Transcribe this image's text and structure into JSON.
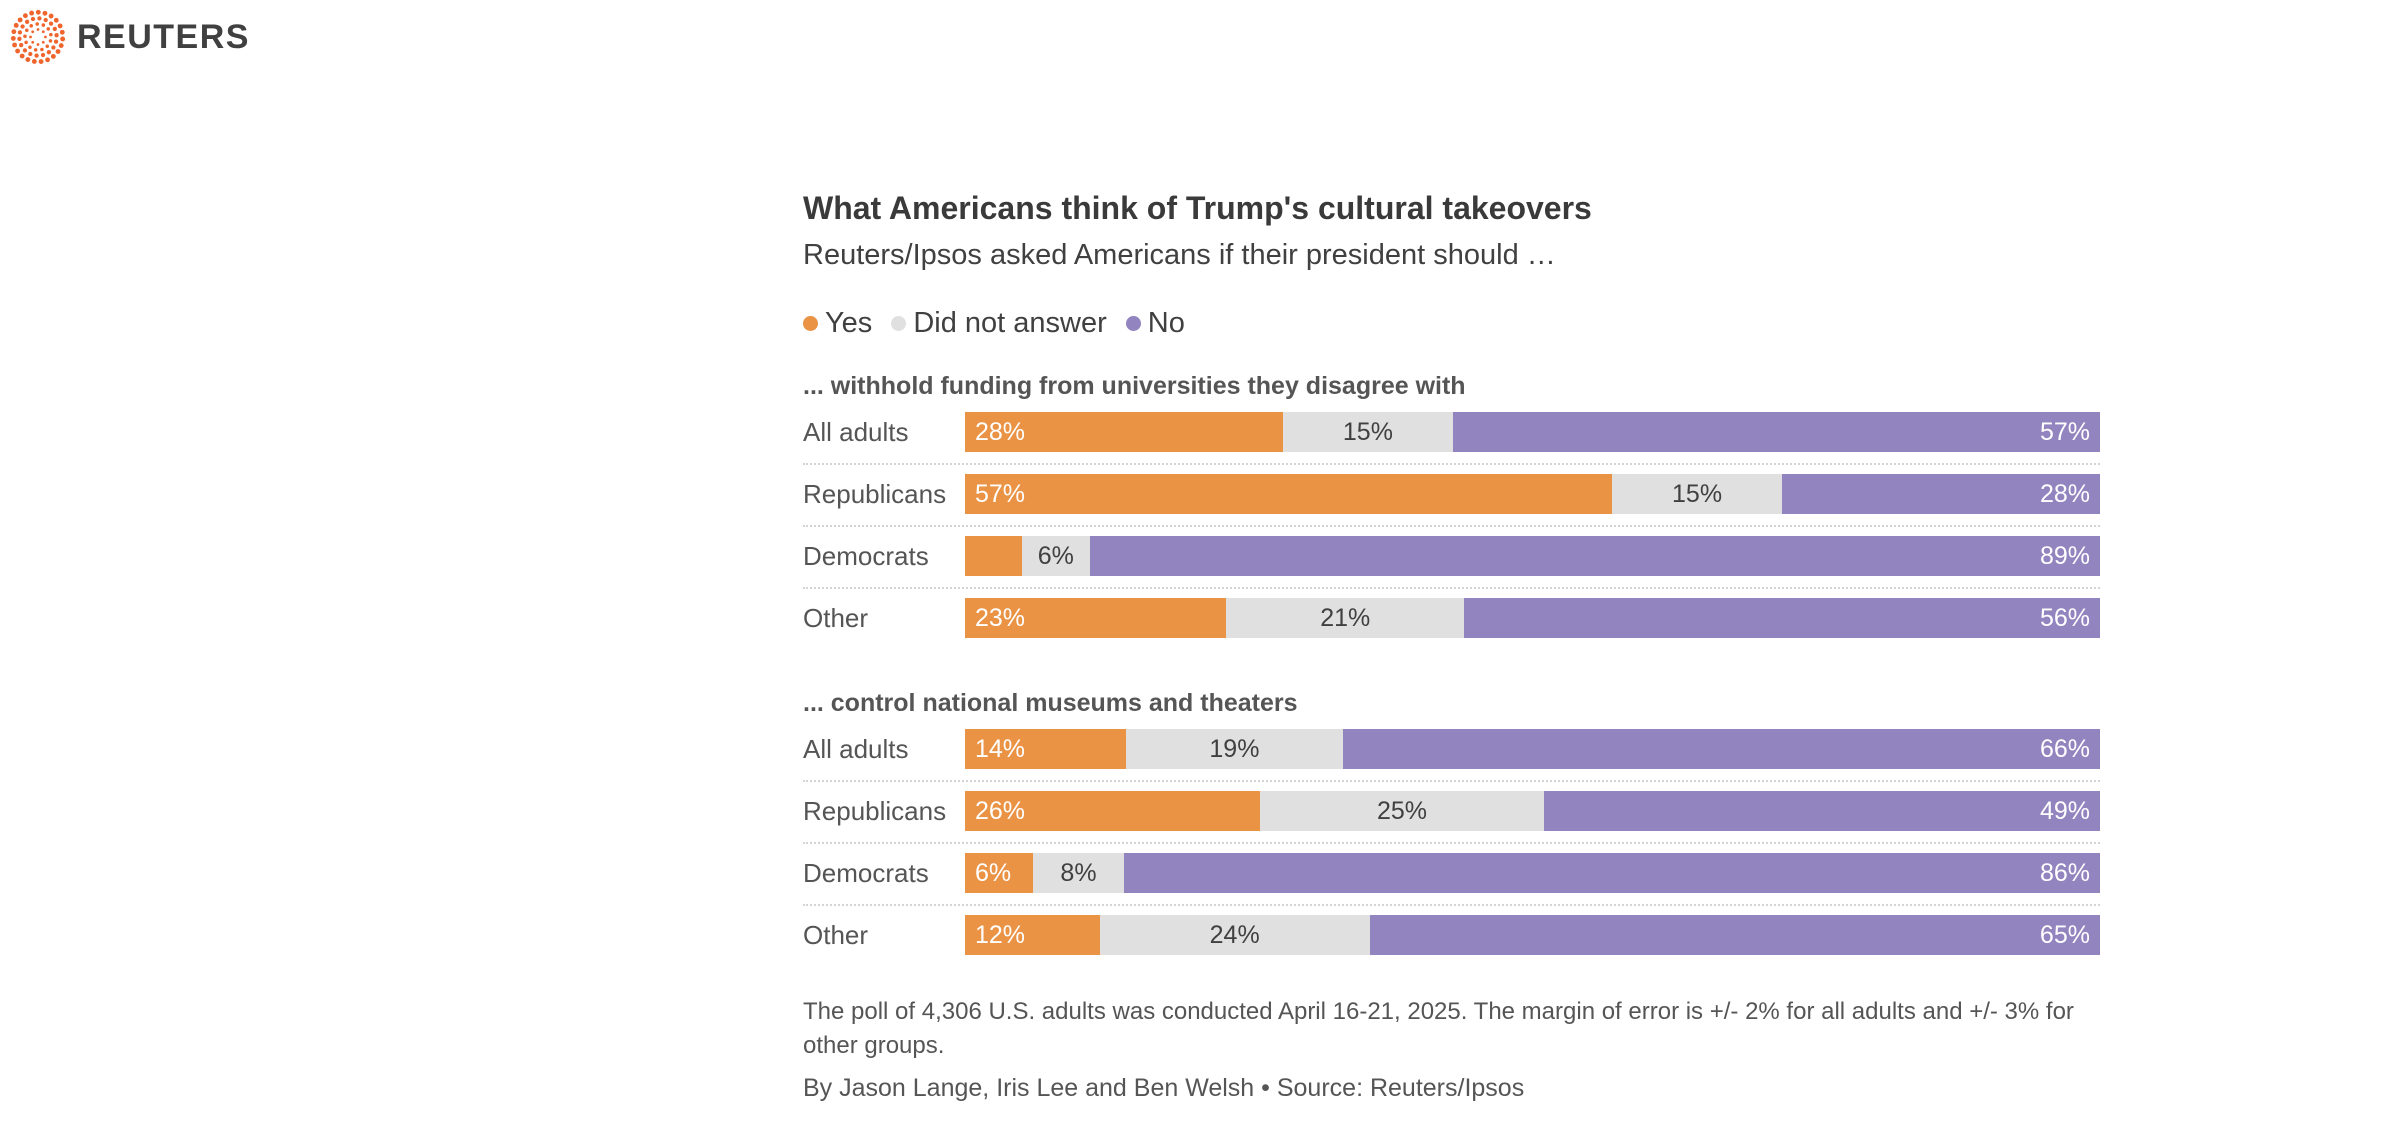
{
  "brand": {
    "name": "REUTERS",
    "icon": "reuters-dot-logo-icon",
    "color": "#f0642d"
  },
  "chart_data": {
    "type": "bar",
    "orientation": "horizontal",
    "stacking": "percent",
    "title": "What Americans think of Trump's cultural takeovers",
    "subtitle": "Reuters/Ipsos asked Americans if their president should …",
    "unit": "%",
    "legend_position": "top-left",
    "grid": false,
    "series": [
      {
        "name": "Yes",
        "color": "#ea9344"
      },
      {
        "name": "Did not answer",
        "color": "#e0e0e0"
      },
      {
        "name": "No",
        "color": "#9184bf"
      }
    ],
    "panels": [
      {
        "heading": "... withhold funding from universities they disagree with",
        "categories": [
          "All adults",
          "Republicans",
          "Democrats",
          "Other"
        ],
        "values": [
          [
            28,
            57,
            5,
            23
          ],
          [
            15,
            15,
            6,
            21
          ],
          [
            57,
            28,
            89,
            56
          ]
        ]
      },
      {
        "heading": "... control national museums and theaters",
        "categories": [
          "All adults",
          "Republicans",
          "Democrats",
          "Other"
        ],
        "values": [
          [
            14,
            26,
            6,
            12
          ],
          [
            19,
            25,
            8,
            24
          ],
          [
            66,
            49,
            86,
            65
          ]
        ]
      }
    ]
  },
  "notes": {
    "footnote": "The poll of 4,306 U.S. adults was conducted April 16-21, 2025. The margin of error is +/- 2% for all adults and +/- 3% for other groups.",
    "byline": "By Jason Lange, Iris Lee and Ben Welsh • Source: Reuters/Ipsos"
  }
}
